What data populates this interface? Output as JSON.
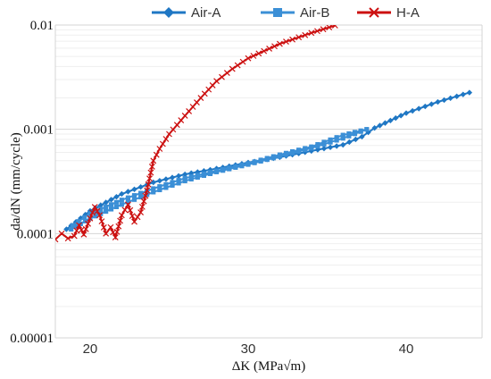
{
  "chart_data": {
    "type": "line",
    "xlabel": "ΔK (MPa√m)",
    "ylabel": "da/dN (mm/cycle)",
    "xlim": [
      17.8,
      44.8
    ],
    "ylim": [
      1e-05,
      0.01
    ],
    "y_scale": "log",
    "x_ticks": [
      20,
      30,
      40
    ],
    "x_tick_labels": [
      "20",
      "30",
      "40"
    ],
    "y_ticks": [
      1e-05,
      0.0001,
      0.001,
      0.01
    ],
    "y_tick_labels": [
      "0.00001",
      "0.0001",
      "0.001",
      "0.01"
    ],
    "grid": true,
    "legend_position": "top",
    "series": [
      {
        "name": "Air-A",
        "color": "#1f77c4",
        "marker": "diamond",
        "x": [
          18.5,
          20,
          22,
          24,
          26,
          28,
          30,
          32,
          34,
          36,
          37.2,
          38,
          40,
          42,
          44
        ],
        "y": [
          0.00011,
          0.000165,
          0.00024,
          0.00031,
          0.00037,
          0.00042,
          0.00048,
          0.00054,
          0.00062,
          0.00071,
          0.00085,
          0.00103,
          0.00143,
          0.00183,
          0.00225
        ]
      },
      {
        "name": "Air-B",
        "color": "#3b8fd6",
        "marker": "square",
        "x": [
          18.8,
          20,
          22,
          24,
          26,
          28,
          30,
          32,
          34,
          36,
          37.5,
          36,
          34,
          32,
          30,
          28,
          26,
          24,
          22,
          20,
          18.9
        ],
        "y": [
          0.00011,
          0.00014,
          0.00019,
          0.00025,
          0.00032,
          0.00039,
          0.00046,
          0.00055,
          0.00066,
          0.00082,
          0.001,
          0.00088,
          0.00068,
          0.00057,
          0.00047,
          0.0004,
          0.00034,
          0.00027,
          0.00021,
          0.000155,
          0.00012
        ]
      },
      {
        "name": "H-A",
        "color": "#cc1111",
        "marker": "x",
        "x": [
          17.8,
          18.2,
          18.6,
          19,
          19.3,
          19.6,
          20,
          20.3,
          20.6,
          21,
          21.3,
          21.6,
          22,
          22.4,
          22.8,
          23.2,
          23.6,
          24,
          24.4,
          25,
          26,
          27,
          28,
          29,
          30,
          32,
          34,
          35.5
        ],
        "y": [
          8.8e-05,
          0.0001,
          9e-05,
          9.5e-05,
          0.00012,
          9.8e-05,
          0.00014,
          0.00018,
          0.00015,
          0.0001,
          0.000115,
          9.2e-05,
          0.00015,
          0.00019,
          0.00013,
          0.00016,
          0.00026,
          0.0005,
          0.00065,
          0.0009,
          0.00135,
          0.002,
          0.0029,
          0.0038,
          0.0048,
          0.0066,
          0.0084,
          0.0099
        ]
      }
    ]
  }
}
